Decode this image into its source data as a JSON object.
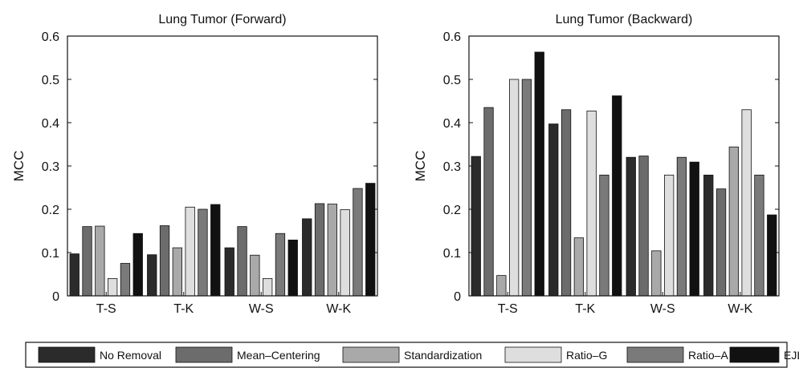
{
  "legend": [
    {
      "name": "No Removal",
      "color": "#2b2b2b"
    },
    {
      "name": "Mean–Centering",
      "color": "#6c6c6c"
    },
    {
      "name": "Standardization",
      "color": "#a9a9a9"
    },
    {
      "name": "Ratio–G",
      "color": "#dedede"
    },
    {
      "name": "Ratio–A",
      "color": "#7a7a7a"
    },
    {
      "name": "EJLR",
      "color": "#111111"
    }
  ],
  "chart_data": [
    {
      "type": "bar",
      "title": "Lung Tumor (Forward)",
      "ylabel": "MCC",
      "categories": [
        "T-S",
        "T-K",
        "W-S",
        "W-K"
      ],
      "ylim": [
        0,
        0.6
      ],
      "yticks": [
        "0",
        "0.1",
        "0.2",
        "0.3",
        "0.4",
        "0.5",
        "0.6"
      ],
      "series": [
        {
          "name": "No Removal",
          "values": [
            0.097,
            0.095,
            0.111,
            0.178
          ]
        },
        {
          "name": "Mean–Centering",
          "values": [
            0.16,
            0.162,
            0.16,
            0.213
          ]
        },
        {
          "name": "Standardization",
          "values": [
            0.161,
            0.111,
            0.094,
            0.212
          ]
        },
        {
          "name": "Ratio–G",
          "values": [
            0.04,
            0.205,
            0.04,
            0.199
          ]
        },
        {
          "name": "Ratio–A",
          "values": [
            0.075,
            0.2,
            0.144,
            0.248
          ]
        },
        {
          "name": "EJLR",
          "values": [
            0.144,
            0.211,
            0.129,
            0.26
          ]
        }
      ]
    },
    {
      "type": "bar",
      "title": "Lung Tumor (Backward)",
      "ylabel": "MCC",
      "categories": [
        "T-S",
        "T-K",
        "W-S",
        "W-K"
      ],
      "ylim": [
        0,
        0.6
      ],
      "yticks": [
        "0",
        "0.1",
        "0.2",
        "0.3",
        "0.4",
        "0.5",
        "0.6"
      ],
      "series": [
        {
          "name": "No Removal",
          "values": [
            0.322,
            0.397,
            0.32,
            0.279
          ]
        },
        {
          "name": "Mean–Centering",
          "values": [
            0.435,
            0.43,
            0.323,
            0.247
          ]
        },
        {
          "name": "Standardization",
          "values": [
            0.047,
            0.134,
            0.104,
            0.344
          ]
        },
        {
          "name": "Ratio–G",
          "values": [
            0.5,
            0.427,
            0.279,
            0.43
          ]
        },
        {
          "name": "Ratio–A",
          "values": [
            0.5,
            0.279,
            0.32,
            0.279
          ]
        },
        {
          "name": "EJLR",
          "values": [
            0.563,
            0.462,
            0.309,
            0.187
          ]
        }
      ]
    }
  ]
}
